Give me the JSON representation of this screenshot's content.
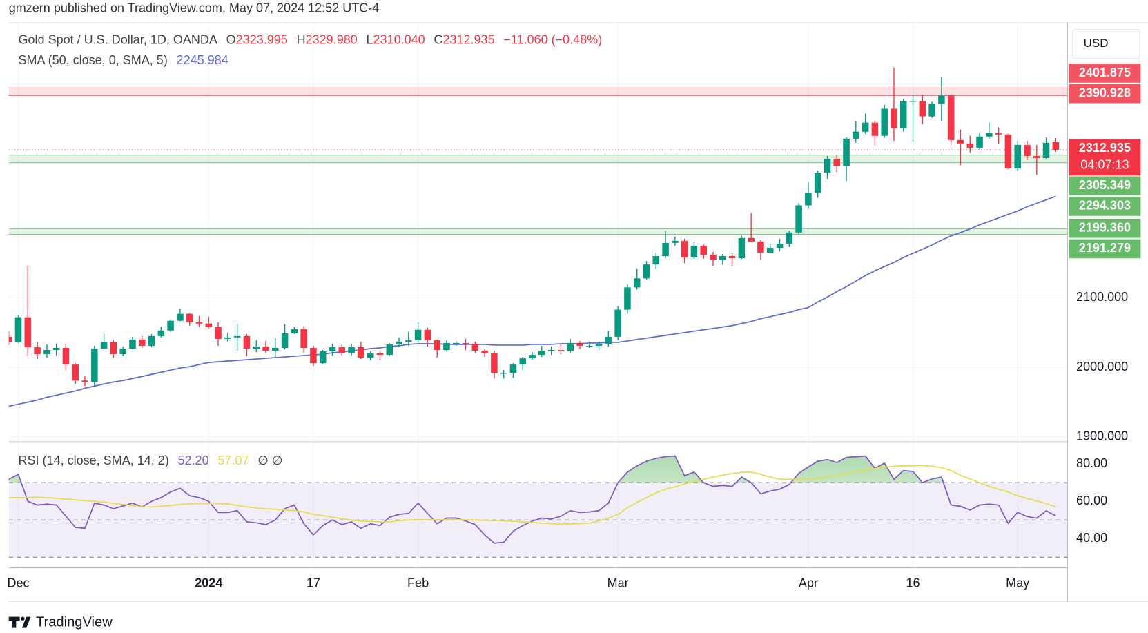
{
  "header": {
    "attribution": "gmzern published on TradingView.com, May 07, 2024 12:52 UTC-4"
  },
  "chart_data": [
    {
      "type": "candlestick",
      "symbol": "Gold Spot / U.S. Dollar, 1D, OANDA",
      "ohlc_legend": [
        {
          "key": "O",
          "value": "2323.995"
        },
        {
          "key": "H",
          "value": "2329.980"
        },
        {
          "key": "L",
          "value": "2310.040"
        },
        {
          "key": "C",
          "value": "2312.935"
        }
      ],
      "change": "−11.060 (−0.48%)",
      "currency": "USD",
      "last_price_countdown": "04:07:13",
      "categories": [
        null,
        "Dec",
        null,
        null,
        null,
        null,
        null,
        null,
        null,
        null,
        null,
        null,
        null,
        null,
        null,
        null,
        null,
        null,
        null,
        null,
        null,
        "2024",
        null,
        null,
        null,
        null,
        null,
        null,
        null,
        null,
        null,
        null,
        "17",
        null,
        null,
        null,
        null,
        null,
        null,
        null,
        null,
        null,
        null,
        "Feb",
        null,
        null,
        null,
        null,
        null,
        null,
        null,
        null,
        null,
        null,
        null,
        null,
        null,
        null,
        null,
        null,
        null,
        null,
        null,
        null,
        "Mar",
        null,
        null,
        null,
        null,
        null,
        null,
        null,
        null,
        null,
        null,
        null,
        null,
        null,
        null,
        null,
        null,
        null,
        null,
        null,
        "Apr",
        null,
        null,
        null,
        null,
        null,
        null,
        null,
        null,
        null,
        null,
        "16",
        null,
        null,
        null,
        null,
        null,
        null,
        null,
        null,
        null,
        null,
        "May",
        null,
        null,
        null,
        null
      ],
      "open": [
        2044,
        2036,
        2072,
        2029,
        2019,
        2025,
        2028,
        2004,
        1981,
        1979,
        2027,
        2036,
        2019,
        2027,
        2040,
        2031,
        2045,
        2053,
        2067,
        2077,
        2065,
        2063,
        2058,
        2041,
        2043,
        2045,
        2027,
        2030,
        2024,
        2028,
        2049,
        2055,
        2028,
        2006,
        2023,
        2029,
        2021,
        2029,
        2014,
        2020,
        2018,
        2033,
        2037,
        2039,
        2054,
        2039,
        2025,
        2035,
        2035,
        2034,
        2024,
        2020,
        1992,
        1992,
        2004,
        2013,
        2018,
        2024,
        2025,
        2024,
        2035,
        2031,
        2031,
        2034,
        2044,
        2083,
        2115,
        2128,
        2148,
        2160,
        2179,
        2182,
        2158,
        2175,
        2162,
        2155,
        2160,
        2157,
        2186,
        2181,
        2165,
        2172,
        2178,
        2194,
        2233,
        2251,
        2280,
        2300,
        2290,
        2329,
        2339,
        2352,
        2333,
        2372,
        2344,
        2383,
        2383,
        2361,
        2379,
        2391,
        2327,
        2322,
        2316,
        2332,
        2337,
        2335,
        2286,
        2320,
        2304,
        2301,
        2323.995
      ],
      "high": [
        2052,
        2075,
        2146,
        2036,
        2033,
        2034,
        2034,
        2006,
        1988,
        2031,
        2048,
        2039,
        2030,
        2044,
        2045,
        2048,
        2058,
        2069,
        2084,
        2078,
        2074,
        2073,
        2065,
        2050,
        2063,
        2048,
        2039,
        2038,
        2042,
        2062,
        2058,
        2059,
        2031,
        2025,
        2034,
        2033,
        2034,
        2037,
        2023,
        2023,
        2035,
        2043,
        2051,
        2065,
        2057,
        2040,
        2039,
        2038,
        2041,
        2037,
        2026,
        2024,
        1996,
        2006,
        2015,
        2022,
        2031,
        2030,
        2034,
        2041,
        2038,
        2037,
        2037,
        2052,
        2088,
        2119,
        2142,
        2153,
        2165,
        2196,
        2188,
        2185,
        2180,
        2177,
        2166,
        2163,
        2164,
        2189,
        2222,
        2183,
        2178,
        2185,
        2196,
        2236,
        2266,
        2283,
        2304,
        2305,
        2331,
        2354,
        2365,
        2354,
        2378,
        2431,
        2386,
        2392,
        2392,
        2382,
        2417,
        2392,
        2342,
        2333,
        2338,
        2352,
        2345,
        2336,
        2326,
        2326,
        2320,
        2331,
        2329.98
      ],
      "low": [
        2032,
        2035,
        2016,
        2012,
        2014,
        2017,
        1996,
        1976,
        1973,
        1973,
        2026,
        2014,
        2016,
        2026,
        2028,
        2029,
        2043,
        2051,
        2066,
        2060,
        2058,
        2056,
        2031,
        2037,
        2024,
        2016,
        2022,
        2021,
        2013,
        2026,
        2048,
        2021,
        2002,
        2004,
        2017,
        2017,
        2017,
        2012,
        2010,
        2011,
        2016,
        2029,
        2031,
        2036,
        2030,
        2014,
        2023,
        2031,
        2025,
        2021,
        2015,
        1984,
        1984,
        1985,
        1996,
        2011,
        2015,
        2018,
        2019,
        2020,
        2026,
        2028,
        2025,
        2030,
        2039,
        2077,
        2112,
        2126,
        2142,
        2157,
        2175,
        2150,
        2156,
        2156,
        2146,
        2148,
        2146,
        2156,
        2180,
        2155,
        2164,
        2167,
        2173,
        2192,
        2228,
        2244,
        2271,
        2281,
        2268,
        2323,
        2336,
        2319,
        2330,
        2326,
        2339,
        2325,
        2350,
        2359,
        2354,
        2320,
        2291,
        2309,
        2313,
        2329,
        2322,
        2285,
        2282,
        2298,
        2277,
        2299,
        2310.04
      ],
      "close": [
        2036,
        2072,
        2029,
        2019,
        2025,
        2028,
        2004,
        1981,
        1979,
        2027,
        2036,
        2019,
        2027,
        2040,
        2031,
        2045,
        2053,
        2067,
        2077,
        2065,
        2063,
        2058,
        2041,
        2043,
        2045,
        2027,
        2030,
        2024,
        2028,
        2049,
        2055,
        2028,
        2006,
        2023,
        2029,
        2021,
        2029,
        2014,
        2020,
        2018,
        2033,
        2037,
        2039,
        2054,
        2039,
        2025,
        2035,
        2035,
        2034,
        2024,
        2020,
        1992,
        1992,
        2004,
        2013,
        2018,
        2024,
        2025,
        2024,
        2035,
        2031,
        2031,
        2034,
        2044,
        2083,
        2115,
        2128,
        2148,
        2160,
        2179,
        2182,
        2158,
        2175,
        2162,
        2155,
        2160,
        2157,
        2186,
        2181,
        2165,
        2172,
        2178,
        2194,
        2233,
        2251,
        2280,
        2300,
        2290,
        2329,
        2339,
        2352,
        2333,
        2372,
        2344,
        2383,
        2383,
        2361,
        2379,
        2391,
        2327,
        2322,
        2316,
        2332,
        2337,
        2335,
        2286,
        2320,
        2304,
        2301,
        2323,
        2312.935
      ],
      "up_color": "#089981",
      "down_color": "#f23645",
      "ylim": [
        1893.7,
        2494.7
      ],
      "yticks": [
        {
          "value": 1900,
          "label": "1900.000"
        },
        {
          "value": 2000,
          "label": "2000.000"
        },
        {
          "value": 2100,
          "label": "2100.000"
        }
      ],
      "grid": true,
      "series": [
        {
          "name": "SMA (50, close, 0, SMA, 5)",
          "color": "#5b67d8",
          "values": [
            1944,
            1947,
            1950,
            1953,
            1957,
            1960,
            1963,
            1966,
            1970,
            1973,
            1976,
            1979,
            1981,
            1984,
            1987,
            1990,
            1993,
            1996,
            1999,
            2001,
            2004,
            2007,
            2008,
            2009,
            2010,
            2011,
            2012,
            2013,
            2014,
            2015,
            2016,
            2017,
            2018,
            2019,
            2021,
            2022,
            2024,
            2025,
            2027,
            2028,
            2030,
            2031,
            2033,
            2034,
            2034,
            2034,
            2033,
            2033,
            2033,
            2033,
            2033,
            2032,
            2032,
            2032,
            2032,
            2033,
            2033,
            2033,
            2034,
            2034,
            2034,
            2035,
            2035,
            2036,
            2036,
            2038,
            2040,
            2042,
            2044,
            2046,
            2048,
            2050,
            2052,
            2054,
            2056,
            2058,
            2060,
            2063,
            2066,
            2070,
            2073,
            2076,
            2079,
            2083,
            2086,
            2094,
            2101,
            2109,
            2116,
            2124,
            2132,
            2139,
            2145,
            2151,
            2158,
            2164,
            2170,
            2176,
            2183,
            2189,
            2194,
            2199,
            2205,
            2210,
            2215,
            2220,
            2225,
            2231,
            2236,
            2241,
            2245.984
          ]
        }
      ],
      "zones": [
        {
          "top": {
            "value": 2401.875,
            "label": "2401.875"
          },
          "bottom": {
            "value": 2390.928,
            "label": "2390.928"
          },
          "color": "#f23645"
        },
        {
          "top": {
            "value": 2305.349,
            "label": "2305.349"
          },
          "bottom": {
            "value": 2294.303,
            "label": "2294.303"
          },
          "color": "#4caf50"
        },
        {
          "top": {
            "value": 2199.36,
            "label": "2199.360"
          },
          "bottom": {
            "value": 2191.279,
            "label": "2191.279"
          },
          "color": "#4caf50"
        }
      ]
    },
    {
      "type": "line",
      "title": "RSI (14, close, SMA, 14, 2)",
      "extra": "∅ ∅",
      "ylim": [
        24.7,
        91.4
      ],
      "yticks": [
        {
          "value": 40,
          "label": "40.00"
        },
        {
          "value": 60,
          "label": "60.00"
        },
        {
          "value": 80,
          "label": "80.00"
        }
      ],
      "levels": [
        70,
        50,
        30
      ],
      "band_color": "#7e57c2",
      "series": [
        {
          "color": "#7e57c2",
          "legend_value": "52.20",
          "values": [
            71.8,
            74.5,
            60,
            58,
            58.5,
            58,
            52,
            46,
            45.5,
            59,
            58,
            56,
            57.5,
            59,
            57,
            60,
            62,
            65,
            67,
            63,
            62,
            60,
            54,
            54,
            55,
            49,
            48.5,
            47.5,
            50,
            56,
            58,
            48,
            42,
            47,
            50,
            47.5,
            49,
            45.5,
            48,
            47,
            51.5,
            53,
            53.5,
            59,
            53.5,
            48,
            51,
            51,
            49.5,
            47.5,
            42,
            37.6,
            38,
            44,
            47,
            49.4,
            51,
            50.5,
            52,
            55,
            54,
            54.3,
            55,
            59,
            70,
            75.7,
            79,
            81.5,
            83,
            84,
            84.3,
            73.7,
            75.7,
            70,
            68,
            68.5,
            68,
            73,
            70,
            64,
            65.5,
            66.5,
            69,
            75,
            78.4,
            81.5,
            82.4,
            80.8,
            83.5,
            83.9,
            84.3,
            77.6,
            80.5,
            71.8,
            76.5,
            76,
            70,
            72,
            73,
            58,
            57.3,
            55.3,
            58,
            58.5,
            58,
            48.2,
            54.1,
            51.8,
            51,
            54.9,
            52.2
          ]
        },
        {
          "color": "#e8dc4a",
          "legend_value": "57.07",
          "values": [
            62,
            62,
            62.1,
            62.2,
            62,
            61.6,
            61.2,
            60.8,
            60.4,
            60,
            59.6,
            59,
            58.3,
            57.7,
            57.1,
            56.9,
            57.3,
            57.8,
            58.3,
            58.7,
            58.8,
            58.8,
            58.8,
            58.6,
            57.8,
            57,
            56.4,
            56,
            55.8,
            55.3,
            55,
            54.3,
            53,
            52.3,
            51.5,
            50.7,
            50,
            49.4,
            49.2,
            49,
            49,
            49.6,
            50,
            50.2,
            50.2,
            50.2,
            50.2,
            50.2,
            50.1,
            50,
            49.8,
            49.6,
            49.5,
            49.4,
            49,
            48.7,
            48.3,
            48,
            47.8,
            47.9,
            48.1,
            48.3,
            49.5,
            51,
            53,
            56.5,
            59.5,
            62,
            64.5,
            66.5,
            67.8,
            69.3,
            70.6,
            71.8,
            73,
            74,
            74.9,
            75.5,
            75.7,
            74.5,
            73,
            71.8,
            71.8,
            71.8,
            71.8,
            72.4,
            73.1,
            73.7,
            74.8,
            75.9,
            76.9,
            77.6,
            78.2,
            78.8,
            79,
            79.1,
            79.2,
            78.8,
            78,
            76.5,
            74,
            72,
            70,
            68,
            66.5,
            65,
            63,
            61.5,
            60.2,
            58.8,
            57.07
          ]
        }
      ]
    }
  ],
  "footer": {
    "brand": "TradingView"
  }
}
